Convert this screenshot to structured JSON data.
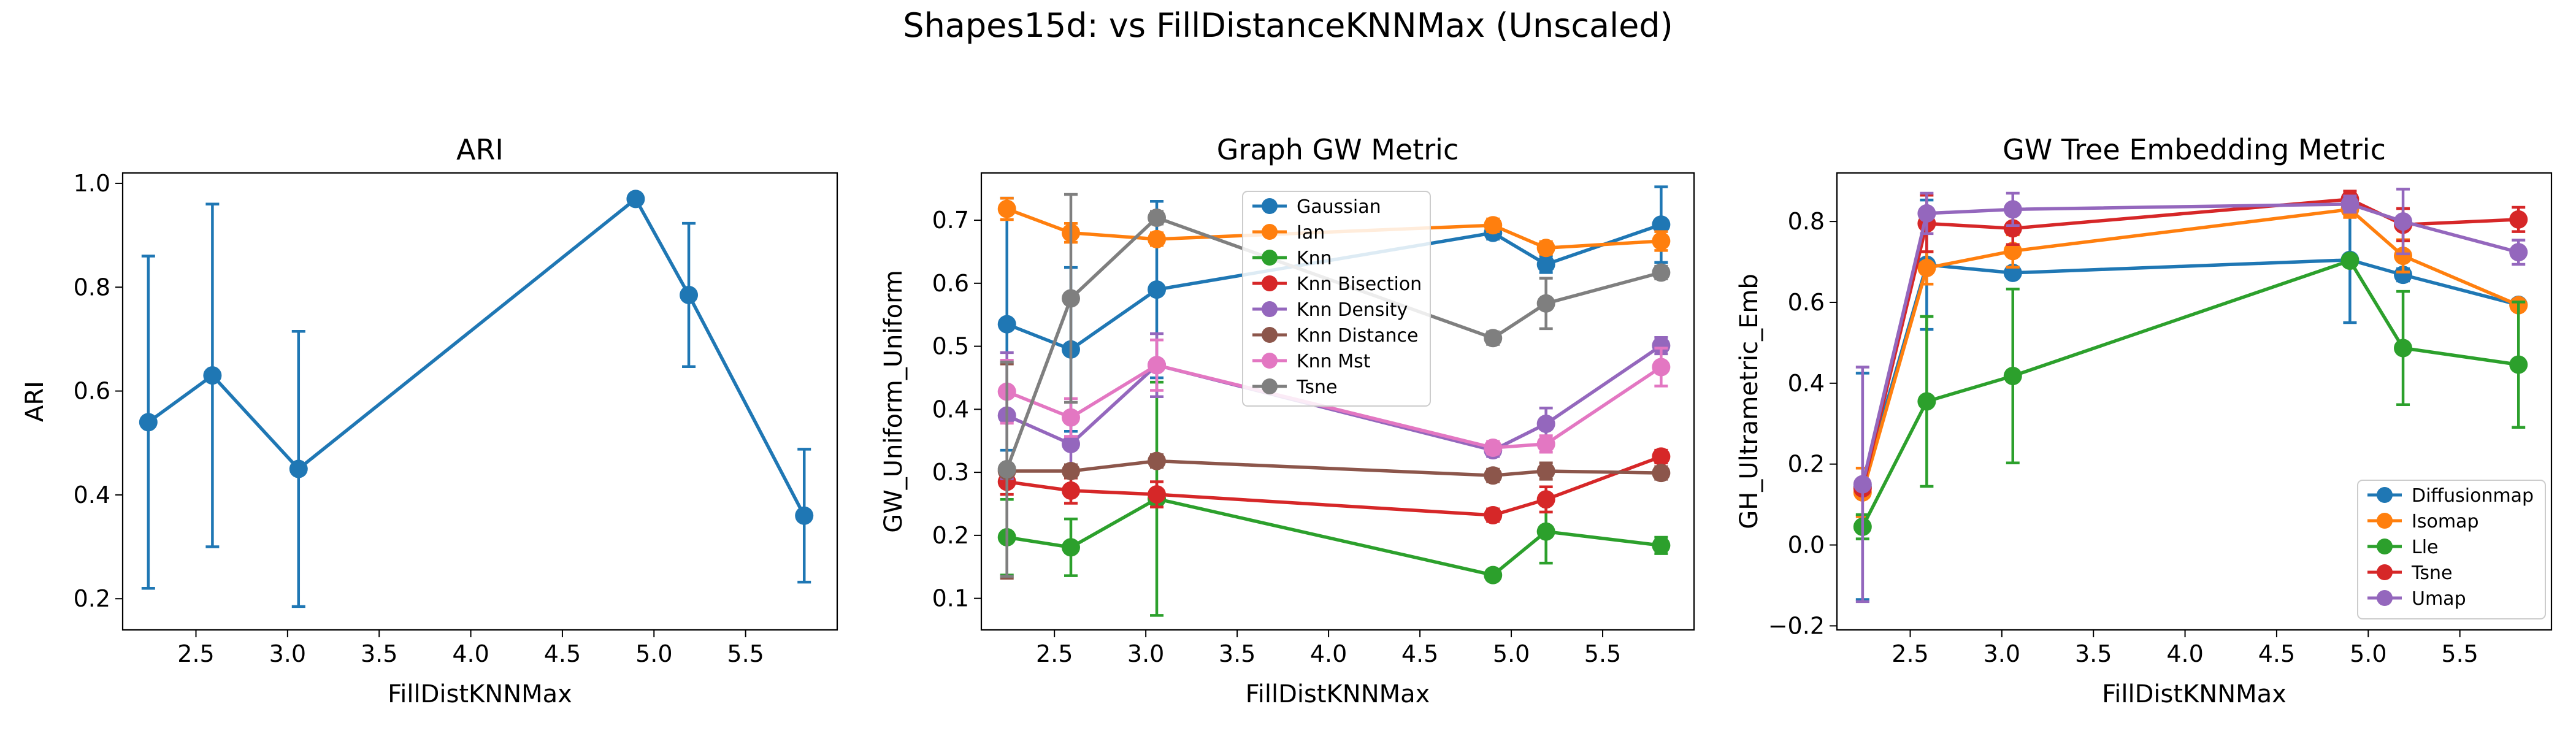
{
  "figure": {
    "title": "Shapes15d: vs FillDistanceKNNMax (Unscaled)"
  },
  "chart_data": [
    {
      "type": "line",
      "title": "ARI",
      "xlabel": "FillDistKNNMax",
      "ylabel": "ARI",
      "xlim": [
        2.1,
        6.0
      ],
      "ylim": [
        0.14,
        1.02
      ],
      "xticks": [
        "2.5",
        "3.0",
        "3.5",
        "4.0",
        "4.5",
        "5.0",
        "5.5"
      ],
      "yticks": [
        "0.2",
        "0.4",
        "0.6",
        "0.8",
        "1.0"
      ],
      "x": [
        2.24,
        2.59,
        3.06,
        4.9,
        5.19,
        5.82
      ],
      "legend": "none",
      "series": [
        {
          "color": "#1f77b4",
          "values": [
            0.54,
            0.63,
            0.45,
            0.97,
            0.785,
            0.36
          ],
          "err": [
            0.32,
            0.33,
            0.265,
            0.0,
            0.138,
            0.128
          ]
        }
      ]
    },
    {
      "type": "line",
      "title": "Graph GW Metric",
      "xlabel": "FillDistKNNMax",
      "ylabel": "GW_Uniform_Uniform",
      "xlim": [
        2.1,
        6.0
      ],
      "ylim": [
        0.05,
        0.775
      ],
      "xticks": [
        "2.5",
        "3.0",
        "3.5",
        "4.0",
        "4.5",
        "5.0",
        "5.5"
      ],
      "yticks": [
        "0.1",
        "0.2",
        "0.3",
        "0.4",
        "0.5",
        "0.6",
        "0.7"
      ],
      "x": [
        2.24,
        2.59,
        3.06,
        4.9,
        5.19,
        5.82
      ],
      "legend": "top-center",
      "series": [
        {
          "name": "Gaussian",
          "color": "#1f77b4",
          "values": [
            0.535,
            0.495,
            0.59,
            0.68,
            0.63,
            0.693
          ],
          "err": [
            0.2,
            0.13,
            0.14,
            0.01,
            0.013,
            0.06
          ]
        },
        {
          "name": "Ian",
          "color": "#ff7f0e",
          "values": [
            0.718,
            0.68,
            0.67,
            0.692,
            0.656,
            0.667
          ],
          "err": [
            0.017,
            0.015,
            0.01,
            0.01,
            0.01,
            0.015
          ]
        },
        {
          "name": "Knn",
          "color": "#2ca02c",
          "values": [
            0.197,
            0.181,
            0.258,
            0.137,
            0.206,
            0.184
          ],
          "err": [
            0.06,
            0.045,
            0.185,
            0.008,
            0.05,
            0.013
          ]
        },
        {
          "name": "Knn Bisection",
          "color": "#d62728",
          "values": [
            0.285,
            0.271,
            0.265,
            0.232,
            0.257,
            0.325
          ],
          "err": [
            0.02,
            0.02,
            0.02,
            0.01,
            0.02,
            0.01
          ]
        },
        {
          "name": "Knn Density",
          "color": "#9467bd",
          "values": [
            0.39,
            0.345,
            0.47,
            0.335,
            0.377,
            0.501
          ],
          "err": [
            0.1,
            0.035,
            0.05,
            0.01,
            0.025,
            0.013
          ]
        },
        {
          "name": "Knn Distance",
          "color": "#8c564b",
          "values": [
            0.302,
            0.302,
            0.318,
            0.295,
            0.302,
            0.299
          ],
          "err": [
            0.17,
            0.01,
            0.01,
            0.01,
            0.013,
            0.01
          ]
        },
        {
          "name": "Knn Mst",
          "color": "#e377c2",
          "values": [
            0.428,
            0.387,
            0.47,
            0.339,
            0.345,
            0.467
          ],
          "err": [
            0.05,
            0.03,
            0.04,
            0.01,
            0.013,
            0.03
          ]
        },
        {
          "name": "Tsne",
          "color": "#7f7f7f",
          "values": [
            0.305,
            0.576,
            0.704,
            0.513,
            0.568,
            0.617
          ],
          "err": [
            0.17,
            0.165,
            0.01,
            0.01,
            0.04,
            0.01
          ]
        }
      ]
    },
    {
      "type": "line",
      "title": "GW Tree Embedding Metric",
      "xlabel": "FillDistKNNMax",
      "ylabel": "GH_Ultrametric_Emb",
      "xlim": [
        2.1,
        6.0
      ],
      "ylim": [
        -0.21,
        0.92
      ],
      "xticks": [
        "2.5",
        "3.0",
        "3.5",
        "4.0",
        "4.5",
        "5.0",
        "5.5"
      ],
      "yticks": [
        "−0.2",
        "0.0",
        "0.2",
        "0.4",
        "0.6",
        "0.8"
      ],
      "x": [
        2.24,
        2.59,
        3.06,
        4.9,
        5.19,
        5.82
      ],
      "legend": "bottom-right",
      "series": [
        {
          "name": "Diffusionmap",
          "color": "#1f77b4",
          "values": [
            0.145,
            0.693,
            0.673,
            0.705,
            0.668,
            0.594
          ],
          "err": [
            0.28,
            0.16,
            0.01,
            0.155,
            0.015,
            0.01
          ]
        },
        {
          "name": "Isomap",
          "color": "#ff7f0e",
          "values": [
            0.13,
            0.685,
            0.727,
            0.83,
            0.715,
            0.593
          ],
          "err": [
            0.06,
            0.04,
            0.04,
            0.02,
            0.04,
            0.01
          ]
        },
        {
          "name": "Lle",
          "color": "#2ca02c",
          "values": [
            0.045,
            0.355,
            0.418,
            0.703,
            0.487,
            0.446
          ],
          "err": [
            0.03,
            0.21,
            0.215,
            0.01,
            0.14,
            0.155
          ]
        },
        {
          "name": "Tsne",
          "color": "#d62728",
          "values": [
            0.14,
            0.795,
            0.783,
            0.855,
            0.792,
            0.805
          ],
          "err": [
            0.01,
            0.07,
            0.04,
            0.02,
            0.04,
            0.03
          ]
        },
        {
          "name": "Umap",
          "color": "#9467bd",
          "values": [
            0.15,
            0.82,
            0.83,
            0.843,
            0.8,
            0.724
          ],
          "err": [
            0.29,
            0.05,
            0.04,
            0.02,
            0.08,
            0.03
          ]
        }
      ]
    }
  ]
}
